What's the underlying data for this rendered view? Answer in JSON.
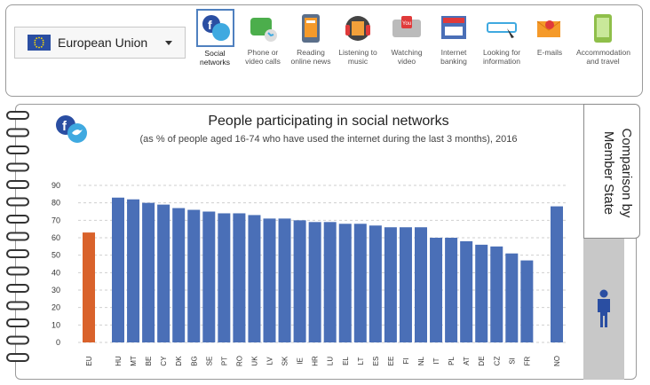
{
  "country_selector": {
    "label": "European Union"
  },
  "categories": [
    {
      "label": "Social\nnetworks",
      "icon": "social-networks-icon",
      "active": true
    },
    {
      "label": "Phone or\nvideo calls",
      "icon": "video-call-icon",
      "active": false
    },
    {
      "label": "Reading\nonline news",
      "icon": "news-icon",
      "active": false
    },
    {
      "label": "Listening to\nmusic",
      "icon": "music-icon",
      "active": false
    },
    {
      "label": "Watching\nvideo",
      "icon": "video-icon",
      "active": false
    },
    {
      "label": "Internet\nbanking",
      "icon": "banking-icon",
      "active": false
    },
    {
      "label": "Looking for\ninformation",
      "icon": "search-info-icon",
      "active": false
    },
    {
      "label": "E-mails",
      "icon": "email-icon",
      "active": false
    },
    {
      "label": "Accommodation\nand travel",
      "icon": "travel-icon",
      "active": false
    }
  ],
  "side_tab": {
    "label": "Comparison by Member State"
  },
  "colors": {
    "eu_bar": "#d9622b",
    "country_bar": "#4a6fb7",
    "brand_blue": "#2a4ea2"
  },
  "chart_data": {
    "type": "bar",
    "title": "People participating in social networks",
    "subtitle": "(as % of people aged 16-74 who have used the internet during the last 3 months), 2016",
    "xlabel": "",
    "ylabel": "",
    "ylim": [
      0,
      90
    ],
    "yticks": [
      0,
      10,
      20,
      30,
      40,
      50,
      60,
      70,
      80,
      90
    ],
    "grid": true,
    "categories": [
      "EU",
      "HU",
      "MT",
      "BE",
      "CY",
      "DK",
      "BG",
      "SE",
      "PT",
      "RO",
      "UK",
      "LV",
      "SK",
      "IE",
      "HR",
      "LU",
      "EL",
      "LT",
      "ES",
      "EE",
      "FI",
      "NL",
      "IT",
      "PL",
      "AT",
      "DE",
      "CZ",
      "SI",
      "FR",
      "NO"
    ],
    "values": [
      63,
      83,
      82,
      80,
      79,
      77,
      76,
      75,
      74,
      74,
      73,
      71,
      71,
      70,
      69,
      69,
      68,
      68,
      67,
      66,
      66,
      66,
      60,
      60,
      58,
      56,
      55,
      51,
      47,
      78
    ],
    "highlight": [
      "EU"
    ]
  }
}
